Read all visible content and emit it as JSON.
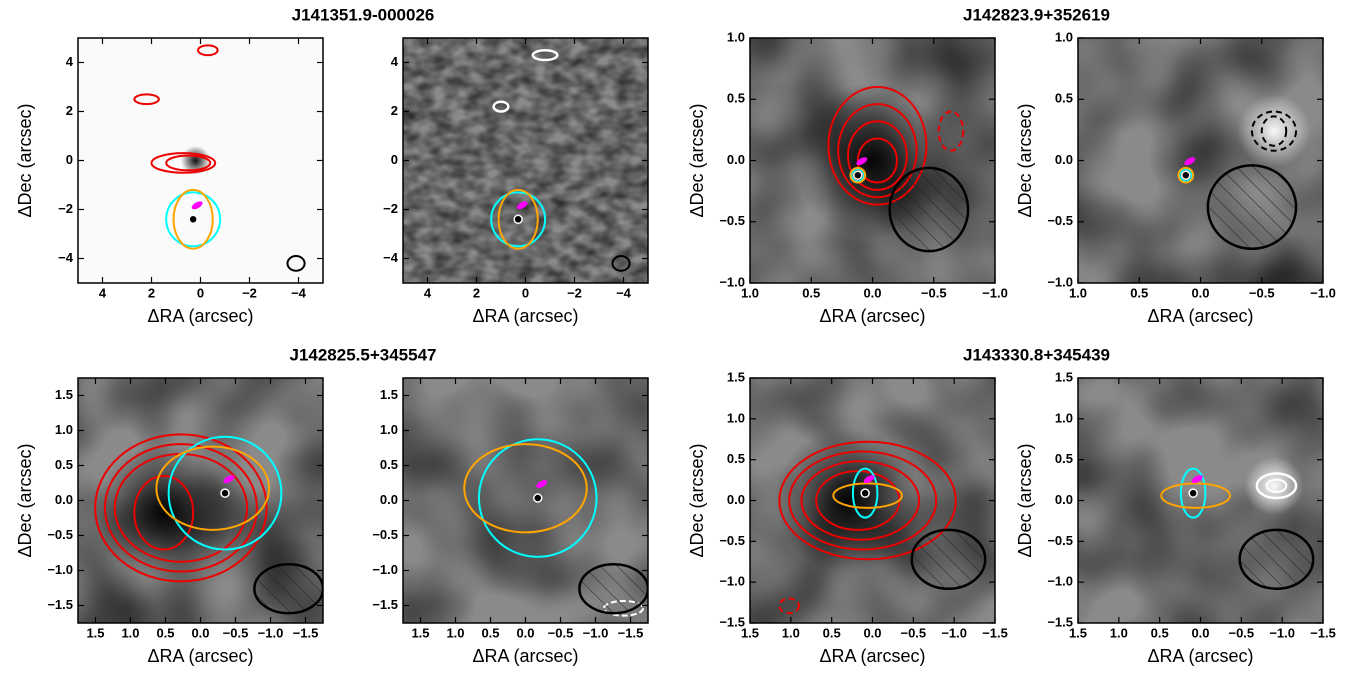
{
  "chart_data": [
    {
      "type": "image",
      "title": "J141351.9-000026",
      "xlabel": "ΔRA (arcsec)",
      "ylabel": "ΔDec (arcsec)",
      "xlim": [
        5,
        -5
      ],
      "ylim": [
        -5,
        5
      ],
      "xticks": [
        4,
        2,
        0,
        {
          "value": -2,
          "label": "−2"
        },
        {
          "value": -4,
          "label": "−4"
        }
      ],
      "yticks": [
        {
          "value": -4,
          "label": "−4"
        },
        {
          "value": -2,
          "label": "−2"
        },
        0,
        2,
        4
      ]
    },
    {
      "type": "image",
      "xlabel": "ΔRA (arcsec)",
      "xlim": [
        5,
        -5
      ],
      "ylim": [
        -5,
        5
      ],
      "xticks": [
        4,
        2,
        0,
        {
          "value": -2,
          "label": "−2"
        },
        {
          "value": -4,
          "label": "−4"
        }
      ],
      "yticks": [
        {
          "value": -4,
          "label": "−4"
        },
        {
          "value": -2,
          "label": "−2"
        },
        0,
        2,
        4
      ]
    },
    {
      "type": "image",
      "title": "J142823.9+352619",
      "xlabel": "ΔRA (arcsec)",
      "ylabel": "ΔDec (arcsec)",
      "xlim": [
        1,
        -1
      ],
      "ylim": [
        -1,
        1
      ],
      "xticks": [
        {
          "value": 1,
          "label": "1.0"
        },
        {
          "value": 0.5,
          "label": "0.5"
        },
        {
          "value": 0,
          "label": "0.0"
        },
        {
          "value": -0.5,
          "label": "−0.5"
        },
        {
          "value": -1,
          "label": "−1.0"
        }
      ],
      "yticks": [
        {
          "value": -1,
          "label": "−1.0"
        },
        {
          "value": -0.5,
          "label": "−0.5"
        },
        {
          "value": 0,
          "label": "0.0"
        },
        {
          "value": 0.5,
          "label": "0.5"
        },
        {
          "value": 1,
          "label": "1.0"
        }
      ]
    },
    {
      "type": "image",
      "ylabel": "ΔDec (arcsec)",
      "xlabel": "ΔRA (arcsec)",
      "xlim": [
        1,
        -1
      ],
      "ylim": [
        -1,
        1
      ],
      "xticks": [
        {
          "value": 1,
          "label": "1.0"
        },
        {
          "value": 0.5,
          "label": "0.5"
        },
        {
          "value": 0,
          "label": "0.0"
        },
        {
          "value": -0.5,
          "label": "−0.5"
        },
        {
          "value": -1,
          "label": "−1.0"
        }
      ],
      "yticks": [
        {
          "value": -1,
          "label": "−1.0"
        },
        {
          "value": -0.5,
          "label": "−0.5"
        },
        {
          "value": 0,
          "label": "0.0"
        },
        {
          "value": 0.5,
          "label": "0.5"
        },
        {
          "value": 1,
          "label": "1.0"
        }
      ]
    },
    {
      "type": "image",
      "title": "J142825.5+345547",
      "xlabel": "ΔRA (arcsec)",
      "ylabel": "ΔDec (arcsec)",
      "xlim": [
        1.75,
        -1.75
      ],
      "ylim": [
        -1.75,
        1.75
      ],
      "xticks": [
        1.5,
        {
          "value": 1,
          "label": "1.0"
        },
        0.5,
        {
          "value": 0,
          "label": "0.0"
        },
        {
          "value": -0.5,
          "label": "−0.5"
        },
        {
          "value": -1,
          "label": "−1.0"
        },
        {
          "value": -1.5,
          "label": "−1.5"
        }
      ],
      "yticks": [
        {
          "value": -1.5,
          "label": "−1.5"
        },
        {
          "value": -1,
          "label": "−1.0"
        },
        {
          "value": -0.5,
          "label": "−0.5"
        },
        {
          "value": 0,
          "label": "0.0"
        },
        0.5,
        {
          "value": 1,
          "label": "1.0"
        },
        1.5
      ]
    },
    {
      "type": "image",
      "xlabel": "ΔRA (arcsec)",
      "xlim": [
        1.75,
        -1.75
      ],
      "ylim": [
        -1.75,
        1.75
      ],
      "xticks": [
        1.5,
        {
          "value": 1,
          "label": "1.0"
        },
        0.5,
        {
          "value": 0,
          "label": "0.0"
        },
        {
          "value": -0.5,
          "label": "−0.5"
        },
        {
          "value": -1,
          "label": "−1.0"
        },
        {
          "value": -1.5,
          "label": "−1.5"
        }
      ],
      "yticks": [
        {
          "value": -1.5,
          "label": "−1.5"
        },
        {
          "value": -1,
          "label": "−1.0"
        },
        {
          "value": -0.5,
          "label": "−0.5"
        },
        {
          "value": 0,
          "label": "0.0"
        },
        0.5,
        {
          "value": 1,
          "label": "1.0"
        },
        1.5
      ]
    },
    {
      "type": "image",
      "title": "J143330.8+345439",
      "xlabel": "ΔRA (arcsec)",
      "ylabel": "ΔDec (arcsec)",
      "xlim": [
        1.5,
        -1.5
      ],
      "ylim": [
        -1.5,
        1.5
      ],
      "xticks": [
        1.5,
        {
          "value": 1,
          "label": "1.0"
        },
        0.5,
        {
          "value": 0,
          "label": "0.0"
        },
        {
          "value": -0.5,
          "label": "−0.5"
        },
        {
          "value": -1,
          "label": "−1.0"
        },
        {
          "value": -1.5,
          "label": "−1.5"
        }
      ],
      "yticks": [
        {
          "value": -1.5,
          "label": "−1.5"
        },
        {
          "value": -1,
          "label": "−1.0"
        },
        {
          "value": -0.5,
          "label": "−0.5"
        },
        {
          "value": 0,
          "label": "0.0"
        },
        0.5,
        {
          "value": 1,
          "label": "1.0"
        },
        1.5
      ]
    },
    {
      "type": "image",
      "ylabel": "ΔDec (arcsec)",
      "xlabel": "ΔRA (arcsec)",
      "xlim": [
        1.5,
        -1.5
      ],
      "ylim": [
        -1.5,
        1.5
      ],
      "xticks": [
        1.5,
        {
          "value": 1,
          "label": "1.0"
        },
        0.5,
        {
          "value": 0,
          "label": "0.0"
        },
        {
          "value": -0.5,
          "label": "−0.5"
        },
        {
          "value": -1,
          "label": "−1.0"
        },
        {
          "value": -1.5,
          "label": "−1.5"
        }
      ],
      "yticks": [
        {
          "value": -1.5,
          "label": "−1.5"
        },
        {
          "value": -1,
          "label": "−1.0"
        },
        {
          "value": -0.5,
          "label": "−0.5"
        },
        {
          "value": 0,
          "label": "0.0"
        },
        0.5,
        {
          "value": 1,
          "label": "1.0"
        },
        1.5
      ]
    }
  ]
}
